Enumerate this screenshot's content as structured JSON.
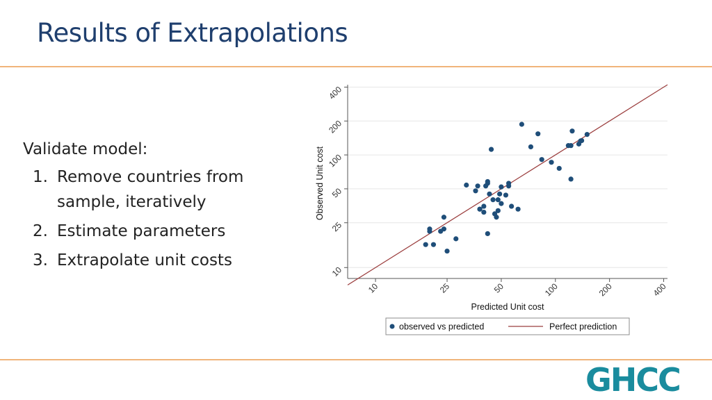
{
  "slide": {
    "title": "Results of Extrapolations",
    "intro": "Validate model:",
    "steps": [
      {
        "num": "1.",
        "text": "Remove countries from sample, iteratively"
      },
      {
        "num": "2.",
        "text": "Estimate parameters"
      },
      {
        "num": "3.",
        "text": "Extrapolate unit costs"
      }
    ],
    "logo_text": "GHCC"
  },
  "colors": {
    "title": "#1f3f6e",
    "rule": "#f0b47a",
    "points": "#1f4e79",
    "line": "#9b3d3d",
    "logo": "#1a8c9e"
  },
  "chart_data": {
    "type": "scatter",
    "xlabel": "Predicted Unit cost",
    "ylabel": "Observed Unit cost",
    "x_scale": "log",
    "y_scale": "log",
    "xlim": [
      7,
      420
    ],
    "ylim": [
      8,
      420
    ],
    "x_ticks": [
      10,
      25,
      50,
      100,
      200,
      400
    ],
    "y_ticks": [
      10,
      25,
      50,
      100,
      200,
      400
    ],
    "grid": "horizontal",
    "legend_position": "bottom",
    "series": [
      {
        "name": "observed vs predicted",
        "marker": "circle",
        "x": [
          19,
          21,
          20,
          20,
          24,
          24,
          23,
          25,
          28,
          32,
          36,
          37,
          38,
          40,
          41,
          42,
          42,
          40,
          38,
          42,
          43,
          44,
          46,
          45,
          48,
          48,
          47,
          49,
          50,
          50,
          53,
          55,
          55,
          57,
          62,
          65,
          73,
          80,
          84,
          95,
          105,
          118,
          122,
          124,
          122,
          135,
          138,
          140,
          150
        ],
        "y": [
          16,
          16,
          21,
          22,
          28,
          22,
          21,
          14,
          18,
          54,
          48,
          53,
          33,
          31,
          53,
          56,
          58,
          35,
          33,
          20,
          45,
          112,
          30,
          40,
          40,
          32,
          28,
          45,
          37,
          52,
          44,
          53,
          56,
          35,
          33,
          187,
          118,
          154,
          91,
          86,
          76,
          121,
          121,
          163,
          61,
          125,
          133,
          134,
          152
        ]
      },
      {
        "name": "Perfect prediction",
        "type": "line",
        "x": [
          7,
          420
        ],
        "y": [
          7,
          420
        ]
      }
    ]
  }
}
